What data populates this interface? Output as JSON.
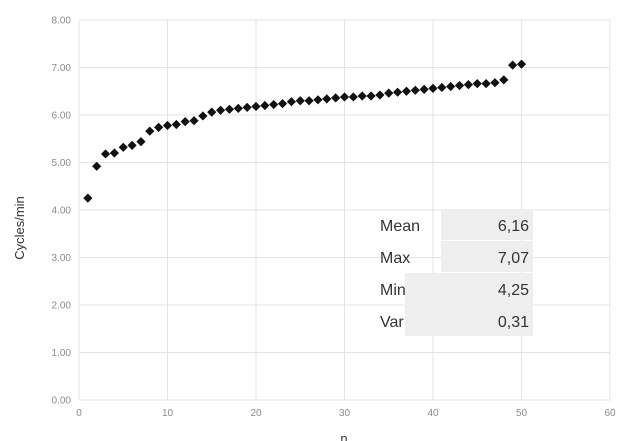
{
  "chart_data": {
    "type": "scatter",
    "xlabel": "n",
    "ylabel": "Cycles/min",
    "xlim": [
      0,
      60
    ],
    "ylim": [
      0,
      8
    ],
    "x_ticks": [
      0,
      10,
      20,
      30,
      40,
      50,
      60
    ],
    "y_ticks": [
      "0.00",
      "1.00",
      "2.00",
      "3.00",
      "4.00",
      "5.00",
      "6.00",
      "7.00",
      "8.00"
    ],
    "grid": true,
    "marker": "diamond",
    "marker_color": "#111111",
    "grid_color": "#e3e3e3",
    "x": [
      1,
      2,
      3,
      4,
      5,
      6,
      7,
      8,
      9,
      10,
      11,
      12,
      13,
      14,
      15,
      16,
      17,
      18,
      19,
      20,
      21,
      22,
      23,
      24,
      25,
      26,
      27,
      28,
      29,
      30,
      31,
      32,
      33,
      34,
      35,
      36,
      37,
      38,
      39,
      40,
      41,
      42,
      43,
      44,
      45,
      46,
      47,
      48,
      49,
      50
    ],
    "y": [
      4.25,
      4.92,
      5.18,
      5.2,
      5.32,
      5.36,
      5.44,
      5.66,
      5.74,
      5.78,
      5.8,
      5.86,
      5.88,
      5.98,
      6.06,
      6.1,
      6.12,
      6.14,
      6.16,
      6.18,
      6.2,
      6.22,
      6.24,
      6.28,
      6.3,
      6.3,
      6.32,
      6.34,
      6.36,
      6.38,
      6.38,
      6.4,
      6.4,
      6.42,
      6.46,
      6.48,
      6.5,
      6.52,
      6.54,
      6.56,
      6.58,
      6.6,
      6.62,
      6.64,
      6.66,
      6.66,
      6.68,
      6.74,
      7.05,
      7.07
    ],
    "stats_table": {
      "rows": [
        {
          "label": "Mean",
          "value": "6,16"
        },
        {
          "label": "Max",
          "value": "7,07"
        },
        {
          "label": "Min",
          "value": "4,25"
        },
        {
          "label": "Var",
          "value": "0,31"
        }
      ],
      "fill_color": "#eeeeee"
    }
  }
}
